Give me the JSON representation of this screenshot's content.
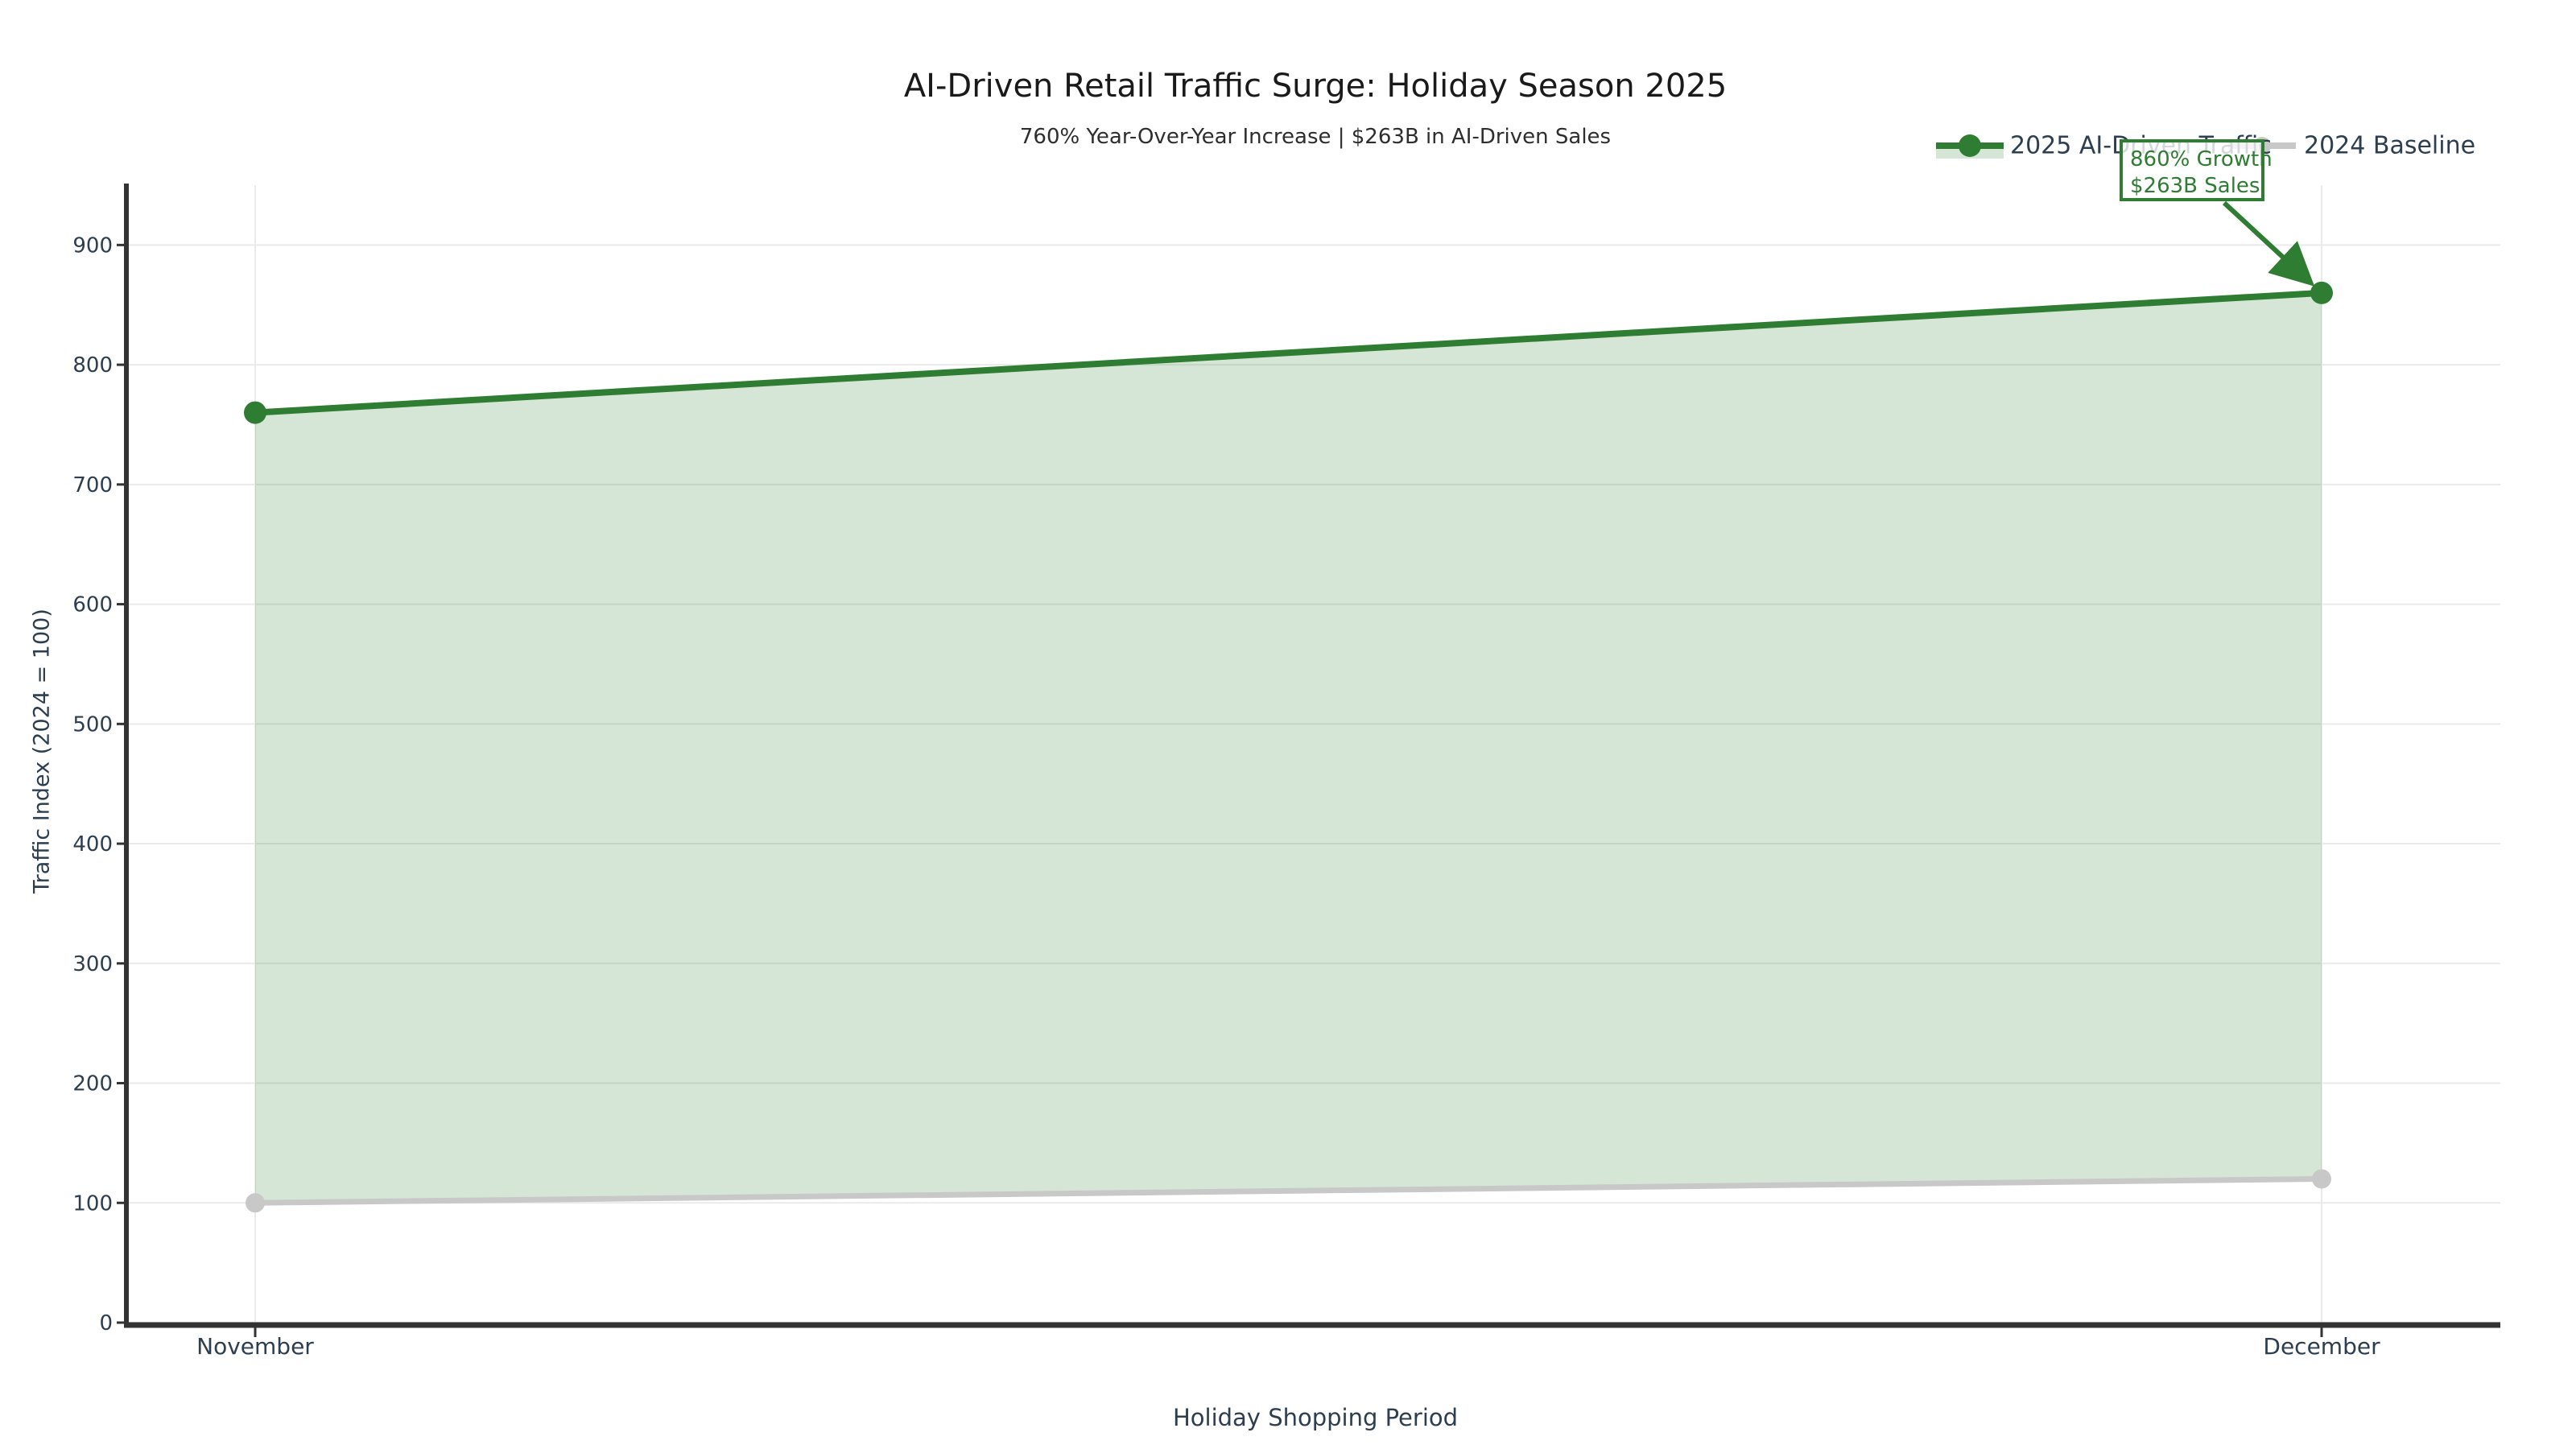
{
  "chart_data": {
    "type": "line",
    "title": "AI-Driven Retail Traffic Surge: Holiday Season 2025",
    "subtitle": "760% Year-Over-Year Increase | $263B in AI-Driven Sales",
    "xlabel": "Holiday Shopping Period",
    "ylabel": "Traffic Index (2024 = 100)",
    "categories": [
      "November",
      "December"
    ],
    "series": [
      {
        "name": "2025 AI-Driven Traffic",
        "values": [
          760,
          860
        ],
        "color": "#2e7d32",
        "marker": "circle",
        "line_width": 8,
        "marker_radius": 14
      },
      {
        "name": "2024 Baseline",
        "values": [
          100,
          120
        ],
        "color": "#c8c8c8",
        "marker": "circle",
        "line_width": 7,
        "marker_radius": 12
      }
    ],
    "fill_between_series": true,
    "fill_color": "#2e7d32",
    "fill_opacity": 0.2,
    "ylim": [
      0,
      950
    ],
    "yticks": [
      0,
      100,
      200,
      300,
      400,
      500,
      600,
      700,
      800,
      900
    ],
    "grid": true,
    "legend_position": "top-right",
    "annotation": {
      "lines": [
        "860% Growth",
        "$263B Sales"
      ],
      "color": "#2e7d32",
      "target_series": "2025 AI-Driven Traffic",
      "target_category": "December",
      "target_value": 860
    },
    "colors": {
      "axis_text": "#2c3e50",
      "title_text": "#1a1a1a",
      "subtitle_text": "#2e2e2e",
      "spine": "#333333",
      "grid_line": "#eaeaea",
      "annotation_green": "#2e7d32",
      "baseline_gray": "#c8c8c8"
    }
  }
}
